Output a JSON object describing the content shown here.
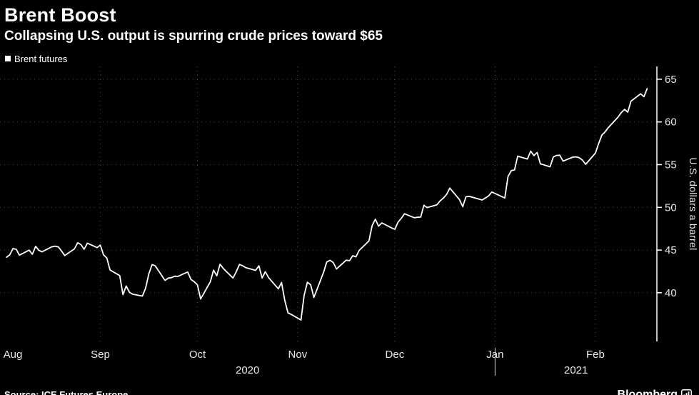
{
  "header": {
    "title": "Brent Boost",
    "subtitle": "Collapsing U.S. output is spurring crude prices toward $65"
  },
  "legend": {
    "label": "Brent futures",
    "marker_color": "#ffffff"
  },
  "chart_data": {
    "type": "line",
    "title": "Brent Boost",
    "subtitle": "Collapsing U.S. output is spurring crude prices toward $65",
    "ylabel": "U.S. dollars a barrel",
    "y_ticks": [
      40,
      45,
      50,
      55,
      60,
      65
    ],
    "ylim": [
      34.3,
      66.5
    ],
    "x_domain": [
      "2020-08-01",
      "2021-02-20"
    ],
    "x_ticks": [
      {
        "label": "Aug",
        "date": "2020-08-01"
      },
      {
        "label": "Sep",
        "date": "2020-09-01"
      },
      {
        "label": "Oct",
        "date": "2020-10-01"
      },
      {
        "label": "Nov",
        "date": "2020-11-01"
      },
      {
        "label": "Dec",
        "date": "2020-12-01"
      },
      {
        "label": "Jan",
        "date": "2021-01-01"
      },
      {
        "label": "Feb",
        "date": "2021-02-01"
      }
    ],
    "years": [
      {
        "label": "2020"
      },
      {
        "label": "2021"
      }
    ],
    "year_divider": "2021-01-01",
    "grid": "dotted",
    "legend_position": "top-left",
    "background": "#000000",
    "series": [
      {
        "name": "Brent futures",
        "color": "#ffffff",
        "points": [
          [
            "2020-08-03",
            44.15
          ],
          [
            "2020-08-04",
            44.43
          ],
          [
            "2020-08-05",
            45.17
          ],
          [
            "2020-08-06",
            45.09
          ],
          [
            "2020-08-07",
            44.4
          ],
          [
            "2020-08-10",
            44.99
          ],
          [
            "2020-08-11",
            44.5
          ],
          [
            "2020-08-12",
            45.43
          ],
          [
            "2020-08-13",
            44.96
          ],
          [
            "2020-08-14",
            44.8
          ],
          [
            "2020-08-17",
            45.37
          ],
          [
            "2020-08-18",
            45.46
          ],
          [
            "2020-08-19",
            45.37
          ],
          [
            "2020-08-20",
            44.9
          ],
          [
            "2020-08-21",
            44.35
          ],
          [
            "2020-08-24",
            45.13
          ],
          [
            "2020-08-25",
            45.86
          ],
          [
            "2020-08-26",
            45.64
          ],
          [
            "2020-08-27",
            45.09
          ],
          [
            "2020-08-28",
            45.81
          ],
          [
            "2020-08-31",
            45.28
          ],
          [
            "2020-09-01",
            45.58
          ],
          [
            "2020-09-02",
            44.43
          ],
          [
            "2020-09-03",
            44.07
          ],
          [
            "2020-09-04",
            42.66
          ],
          [
            "2020-09-07",
            42.01
          ],
          [
            "2020-09-08",
            39.78
          ],
          [
            "2020-09-09",
            40.79
          ],
          [
            "2020-09-10",
            40.06
          ],
          [
            "2020-09-11",
            39.83
          ],
          [
            "2020-09-14",
            39.61
          ],
          [
            "2020-09-15",
            40.53
          ],
          [
            "2020-09-16",
            42.22
          ],
          [
            "2020-09-17",
            43.3
          ],
          [
            "2020-09-18",
            43.15
          ],
          [
            "2020-09-21",
            41.44
          ],
          [
            "2020-09-22",
            41.72
          ],
          [
            "2020-09-23",
            41.77
          ],
          [
            "2020-09-24",
            41.94
          ],
          [
            "2020-09-25",
            41.92
          ],
          [
            "2020-09-28",
            42.43
          ],
          [
            "2020-09-29",
            41.56
          ],
          [
            "2020-09-30",
            41.3
          ],
          [
            "2020-10-01",
            40.93
          ],
          [
            "2020-10-02",
            39.27
          ],
          [
            "2020-10-05",
            41.29
          ],
          [
            "2020-10-06",
            42.65
          ],
          [
            "2020-10-07",
            41.99
          ],
          [
            "2020-10-08",
            43.34
          ],
          [
            "2020-10-09",
            42.85
          ],
          [
            "2020-10-12",
            41.72
          ],
          [
            "2020-10-13",
            42.45
          ],
          [
            "2020-10-14",
            43.32
          ],
          [
            "2020-10-15",
            43.16
          ],
          [
            "2020-10-16",
            42.93
          ],
          [
            "2020-10-19",
            42.62
          ],
          [
            "2020-10-20",
            43.16
          ],
          [
            "2020-10-21",
            41.73
          ],
          [
            "2020-10-22",
            42.46
          ],
          [
            "2020-10-23",
            41.77
          ],
          [
            "2020-10-26",
            40.46
          ],
          [
            "2020-10-27",
            41.2
          ],
          [
            "2020-10-28",
            39.12
          ],
          [
            "2020-10-29",
            37.65
          ],
          [
            "2020-10-30",
            37.46
          ],
          [
            "2020-11-02",
            36.81
          ],
          [
            "2020-11-03",
            39.71
          ],
          [
            "2020-11-04",
            41.23
          ],
          [
            "2020-11-05",
            40.93
          ],
          [
            "2020-11-06",
            39.45
          ],
          [
            "2020-11-09",
            42.4
          ],
          [
            "2020-11-10",
            43.61
          ],
          [
            "2020-11-11",
            43.8
          ],
          [
            "2020-11-12",
            43.53
          ],
          [
            "2020-11-13",
            42.78
          ],
          [
            "2020-11-16",
            43.82
          ],
          [
            "2020-11-17",
            43.75
          ],
          [
            "2020-11-18",
            44.34
          ],
          [
            "2020-11-19",
            44.2
          ],
          [
            "2020-11-20",
            44.96
          ],
          [
            "2020-11-23",
            46.06
          ],
          [
            "2020-11-24",
            47.86
          ],
          [
            "2020-11-25",
            48.61
          ],
          [
            "2020-11-26",
            47.8
          ],
          [
            "2020-11-27",
            48.18
          ],
          [
            "2020-11-30",
            47.59
          ],
          [
            "2020-12-01",
            47.42
          ],
          [
            "2020-12-02",
            48.25
          ],
          [
            "2020-12-03",
            48.71
          ],
          [
            "2020-12-04",
            49.25
          ],
          [
            "2020-12-07",
            48.79
          ],
          [
            "2020-12-08",
            48.84
          ],
          [
            "2020-12-09",
            48.86
          ],
          [
            "2020-12-10",
            50.25
          ],
          [
            "2020-12-11",
            49.97
          ],
          [
            "2020-12-14",
            50.29
          ],
          [
            "2020-12-15",
            50.76
          ],
          [
            "2020-12-16",
            51.08
          ],
          [
            "2020-12-17",
            51.5
          ],
          [
            "2020-12-18",
            52.26
          ],
          [
            "2020-12-21",
            50.91
          ],
          [
            "2020-12-22",
            50.08
          ],
          [
            "2020-12-23",
            51.24
          ],
          [
            "2020-12-24",
            51.29
          ],
          [
            "2020-12-28",
            50.86
          ],
          [
            "2020-12-29",
            51.09
          ],
          [
            "2020-12-30",
            51.34
          ],
          [
            "2020-12-31",
            51.8
          ],
          [
            "2021-01-04",
            51.09
          ],
          [
            "2021-01-05",
            53.6
          ],
          [
            "2021-01-06",
            54.3
          ],
          [
            "2021-01-07",
            54.38
          ],
          [
            "2021-01-08",
            55.99
          ],
          [
            "2021-01-11",
            55.66
          ],
          [
            "2021-01-12",
            56.58
          ],
          [
            "2021-01-13",
            56.06
          ],
          [
            "2021-01-14",
            56.42
          ],
          [
            "2021-01-15",
            55.1
          ],
          [
            "2021-01-18",
            54.75
          ],
          [
            "2021-01-19",
            55.9
          ],
          [
            "2021-01-20",
            56.08
          ],
          [
            "2021-01-21",
            56.1
          ],
          [
            "2021-01-22",
            55.41
          ],
          [
            "2021-01-25",
            55.88
          ],
          [
            "2021-01-26",
            55.91
          ],
          [
            "2021-01-27",
            55.81
          ],
          [
            "2021-01-28",
            55.53
          ],
          [
            "2021-01-29",
            55.04
          ],
          [
            "2021-02-01",
            56.35
          ],
          [
            "2021-02-02",
            57.46
          ],
          [
            "2021-02-03",
            58.46
          ],
          [
            "2021-02-04",
            58.84
          ],
          [
            "2021-02-05",
            59.34
          ],
          [
            "2021-02-08",
            60.56
          ],
          [
            "2021-02-09",
            61.09
          ],
          [
            "2021-02-10",
            61.47
          ],
          [
            "2021-02-11",
            61.14
          ],
          [
            "2021-02-12",
            62.43
          ],
          [
            "2021-02-15",
            63.3
          ],
          [
            "2021-02-16",
            62.95
          ],
          [
            "2021-02-17",
            63.9
          ]
        ]
      }
    ]
  },
  "footer": {
    "source": "Source: ICE Futures Europe",
    "brand": "Bloomberg"
  }
}
